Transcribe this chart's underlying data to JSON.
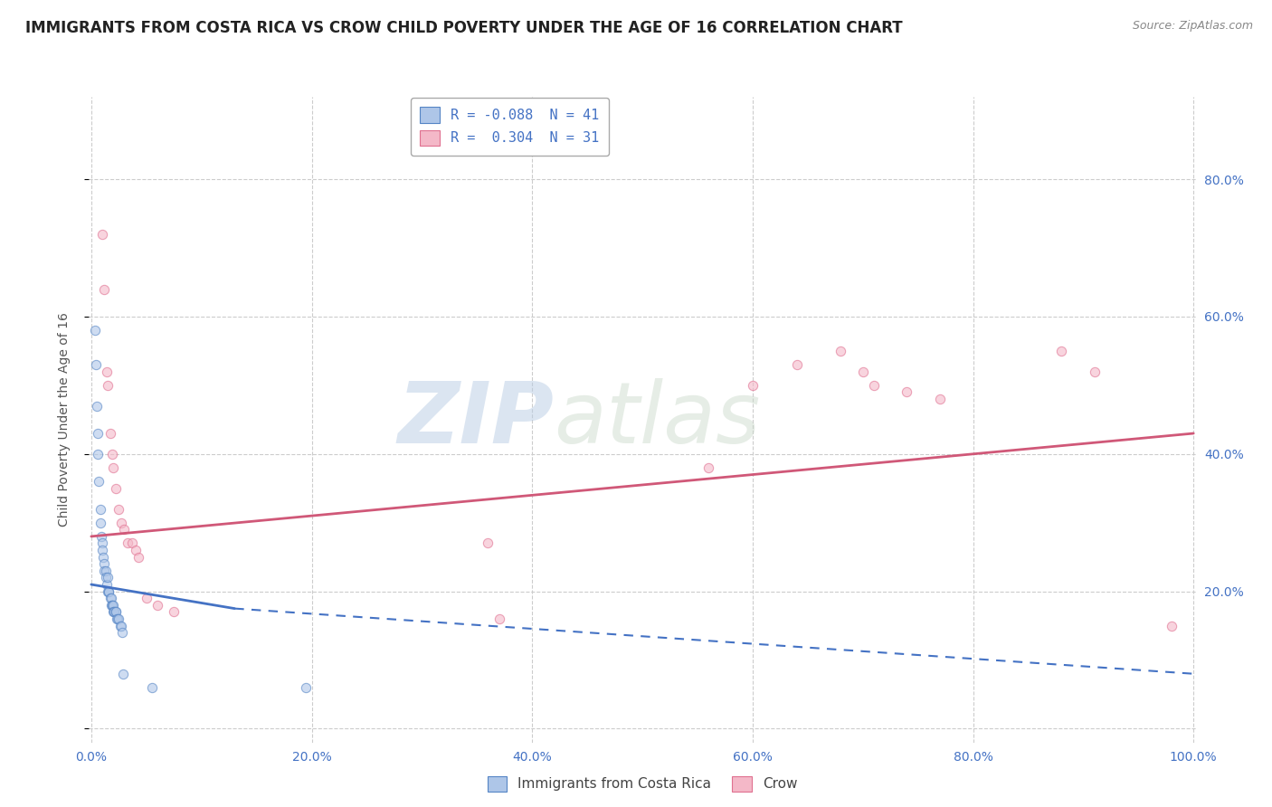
{
  "title": "IMMIGRANTS FROM COSTA RICA VS CROW CHILD POVERTY UNDER THE AGE OF 16 CORRELATION CHART",
  "source": "Source: ZipAtlas.com",
  "ylabel": "Child Poverty Under the Age of 16",
  "xlim": [
    -0.002,
    1.002
  ],
  "ylim": [
    -0.02,
    0.92
  ],
  "xticks": [
    0.0,
    0.2,
    0.4,
    0.6,
    0.8,
    1.0
  ],
  "xticklabels": [
    "0.0%",
    "20.0%",
    "40.0%",
    "60.0%",
    "80.0%",
    "100.0%"
  ],
  "yticks_left": [
    0.0,
    0.2,
    0.4,
    0.6,
    0.8
  ],
  "yticklabels_left": [
    "",
    "",
    "",
    "",
    ""
  ],
  "yticks_right": [
    0.2,
    0.4,
    0.6,
    0.8
  ],
  "yticklabels_right": [
    "20.0%",
    "40.0%",
    "60.0%",
    "80.0%"
  ],
  "legend_blue_label": "R = -0.088  N = 41",
  "legend_pink_label": "R =  0.304  N = 31",
  "blue_color": "#aec6e8",
  "pink_color": "#f4b8c8",
  "blue_edge_color": "#5585c5",
  "pink_edge_color": "#e07090",
  "blue_line_color": "#4472c4",
  "pink_line_color": "#d05878",
  "watermark_zip": "ZIP",
  "watermark_atlas": "atlas",
  "bottom_legend_blue": "Immigrants from Costa Rica",
  "bottom_legend_pink": "Crow",
  "blue_scatter": [
    [
      0.003,
      0.58
    ],
    [
      0.004,
      0.53
    ],
    [
      0.005,
      0.47
    ],
    [
      0.006,
      0.43
    ],
    [
      0.006,
      0.4
    ],
    [
      0.007,
      0.36
    ],
    [
      0.008,
      0.32
    ],
    [
      0.008,
      0.3
    ],
    [
      0.009,
      0.28
    ],
    [
      0.01,
      0.27
    ],
    [
      0.01,
      0.26
    ],
    [
      0.011,
      0.25
    ],
    [
      0.012,
      0.24
    ],
    [
      0.012,
      0.23
    ],
    [
      0.013,
      0.23
    ],
    [
      0.013,
      0.22
    ],
    [
      0.014,
      0.21
    ],
    [
      0.015,
      0.22
    ],
    [
      0.015,
      0.2
    ],
    [
      0.016,
      0.2
    ],
    [
      0.016,
      0.2
    ],
    [
      0.017,
      0.19
    ],
    [
      0.018,
      0.19
    ],
    [
      0.018,
      0.18
    ],
    [
      0.019,
      0.18
    ],
    [
      0.019,
      0.18
    ],
    [
      0.02,
      0.18
    ],
    [
      0.02,
      0.17
    ],
    [
      0.021,
      0.17
    ],
    [
      0.021,
      0.17
    ],
    [
      0.022,
      0.17
    ],
    [
      0.022,
      0.17
    ],
    [
      0.023,
      0.16
    ],
    [
      0.024,
      0.16
    ],
    [
      0.025,
      0.16
    ],
    [
      0.026,
      0.15
    ],
    [
      0.027,
      0.15
    ],
    [
      0.028,
      0.14
    ],
    [
      0.029,
      0.08
    ],
    [
      0.055,
      0.06
    ],
    [
      0.195,
      0.06
    ]
  ],
  "pink_scatter": [
    [
      0.01,
      0.72
    ],
    [
      0.012,
      0.64
    ],
    [
      0.014,
      0.52
    ],
    [
      0.015,
      0.5
    ],
    [
      0.017,
      0.43
    ],
    [
      0.019,
      0.4
    ],
    [
      0.02,
      0.38
    ],
    [
      0.022,
      0.35
    ],
    [
      0.025,
      0.32
    ],
    [
      0.027,
      0.3
    ],
    [
      0.03,
      0.29
    ],
    [
      0.033,
      0.27
    ],
    [
      0.037,
      0.27
    ],
    [
      0.04,
      0.26
    ],
    [
      0.043,
      0.25
    ],
    [
      0.05,
      0.19
    ],
    [
      0.06,
      0.18
    ],
    [
      0.075,
      0.17
    ],
    [
      0.36,
      0.27
    ],
    [
      0.37,
      0.16
    ],
    [
      0.56,
      0.38
    ],
    [
      0.6,
      0.5
    ],
    [
      0.64,
      0.53
    ],
    [
      0.68,
      0.55
    ],
    [
      0.7,
      0.52
    ],
    [
      0.71,
      0.5
    ],
    [
      0.74,
      0.49
    ],
    [
      0.77,
      0.48
    ],
    [
      0.88,
      0.55
    ],
    [
      0.91,
      0.52
    ],
    [
      0.98,
      0.15
    ]
  ],
  "blue_trendline_solid": [
    [
      0.0,
      0.21
    ],
    [
      0.13,
      0.175
    ]
  ],
  "blue_trendline_dashed": [
    [
      0.13,
      0.175
    ],
    [
      1.0,
      0.08
    ]
  ],
  "pink_trendline": [
    [
      0.0,
      0.28
    ],
    [
      1.0,
      0.43
    ]
  ],
  "background_color": "#ffffff",
  "grid_color": "#cccccc",
  "title_fontsize": 12,
  "tick_fontsize": 10,
  "legend_fontsize": 11,
  "scatter_size": 55,
  "scatter_alpha": 0.6,
  "tick_color": "#4472c4"
}
